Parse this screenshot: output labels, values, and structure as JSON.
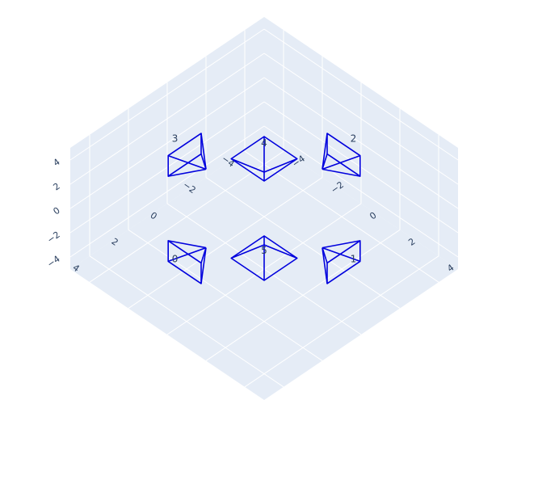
{
  "chart_data": {
    "type": "scatter3d",
    "title": "",
    "axes": {
      "x": {
        "range": [
          -5,
          5
        ],
        "ticks": [
          "−4",
          "−2",
          "0",
          "2",
          "4"
        ]
      },
      "y": {
        "range": [
          -5,
          5
        ],
        "ticks": [
          "−4",
          "−2",
          "0",
          "2",
          "4"
        ]
      },
      "z": {
        "range": [
          -5,
          5
        ],
        "ticks": [
          "−4",
          "−2",
          "0",
          "2",
          "4"
        ]
      }
    },
    "grid": true,
    "marker": "camera-frustum",
    "line_color": "#0000dd",
    "background_color": "#e5ecf6",
    "cameras": [
      {
        "label": "0",
        "position": [
          3,
          0,
          0
        ],
        "direction": [
          1,
          0,
          0
        ]
      },
      {
        "label": "1",
        "position": [
          0,
          3,
          0
        ],
        "direction": [
          0,
          1,
          0
        ]
      },
      {
        "label": "2",
        "position": [
          -3,
          0,
          0
        ],
        "direction": [
          -1,
          0,
          0
        ]
      },
      {
        "label": "3",
        "position": [
          0,
          -3,
          0
        ],
        "direction": [
          0,
          -1,
          0
        ]
      },
      {
        "label": "4",
        "position": [
          0,
          0,
          3
        ],
        "direction": [
          0,
          0,
          1
        ]
      },
      {
        "label": "5",
        "position": [
          0,
          0,
          -3
        ],
        "direction": [
          0,
          0,
          -1
        ]
      }
    ]
  }
}
